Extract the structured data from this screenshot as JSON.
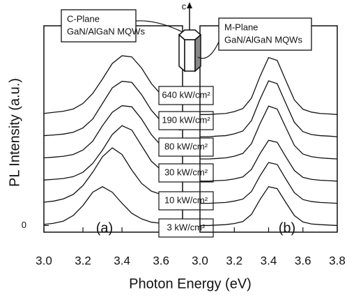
{
  "chart_data": [
    {
      "type": "line",
      "color": "#111111",
      "ylabel": "PL Intensity (a.u.)",
      "xlabel": "Photon Energy (eV)",
      "panel_label": "(a)",
      "plane_label": [
        "C-Plane",
        "GaN/AlGaN MQWs"
      ],
      "crystal_axis_label": "c",
      "xlim": [
        3.0,
        3.71
      ],
      "ylim": [
        -0.3,
        9
      ],
      "xticks": [
        {
          "value": 3.0,
          "label": "3.0"
        },
        {
          "value": 3.2,
          "label": "3.2"
        },
        {
          "value": 3.4,
          "label": "3.4"
        },
        {
          "value": 3.6,
          "label": "3.6"
        }
      ],
      "yticks": [
        0
      ],
      "x": [
        3.0,
        3.05,
        3.1,
        3.15,
        3.2,
        3.25,
        3.3,
        3.35,
        3.4,
        3.45,
        3.5,
        3.55,
        3.6,
        3.65,
        3.7
      ],
      "series": [
        {
          "name": "3 kW/cm²",
          "values": [
            0.05,
            0.1,
            0.2,
            0.45,
            0.9,
            1.5,
            1.75,
            1.5,
            1.0,
            0.55,
            0.3,
            0.15,
            0.1,
            0.05,
            0.05
          ]
        },
        {
          "name": "10 kW/cm²",
          "values": [
            1.05,
            1.1,
            1.2,
            1.4,
            1.8,
            2.4,
            3.1,
            3.5,
            3.2,
            2.5,
            1.9,
            1.55,
            1.4,
            1.3,
            1.2
          ]
        },
        {
          "name": "30 kW/cm²",
          "values": [
            2.05,
            2.08,
            2.12,
            2.2,
            2.4,
            2.8,
            3.4,
            4.1,
            4.5,
            4.3,
            3.6,
            2.9,
            2.5,
            2.3,
            2.2
          ]
        },
        {
          "name": "80 kW/cm²",
          "values": [
            3.05,
            3.08,
            3.12,
            3.2,
            3.4,
            3.8,
            4.5,
            5.1,
            5.4,
            5.35,
            4.8,
            4.1,
            3.6,
            3.35,
            3.25
          ]
        },
        {
          "name": "190 kW/cm²",
          "values": [
            4.05,
            4.08,
            4.12,
            4.2,
            4.4,
            4.8,
            5.5,
            6.2,
            6.5,
            6.45,
            5.9,
            5.2,
            4.7,
            4.4,
            4.3
          ]
        },
        {
          "name": "640 kW/cm²",
          "values": [
            5.05,
            5.1,
            5.15,
            5.25,
            5.5,
            5.95,
            6.6,
            7.3,
            7.65,
            7.6,
            7.1,
            6.4,
            5.9,
            5.6,
            5.45
          ]
        }
      ]
    },
    {
      "type": "line",
      "color": "#111111",
      "panel_label": "(b)",
      "plane_label": [
        "M-Plane",
        "GaN/AlGaN MQWs"
      ],
      "xlim": [
        3.0,
        3.8
      ],
      "ylim": [
        -0.3,
        9
      ],
      "xticks": [
        {
          "value": 3.0,
          "label": "3.0"
        },
        {
          "value": 3.2,
          "label": "3.2"
        },
        {
          "value": 3.4,
          "label": "3.4"
        },
        {
          "value": 3.6,
          "label": "3.6"
        },
        {
          "value": 3.8,
          "label": "3.8"
        }
      ],
      "x": [
        3.0,
        3.05,
        3.1,
        3.15,
        3.2,
        3.25,
        3.3,
        3.35,
        3.4,
        3.45,
        3.5,
        3.55,
        3.6,
        3.65,
        3.7,
        3.75,
        3.8
      ],
      "series": [
        {
          "values": [
            0,
            0,
            0.02,
            0.04,
            0.09,
            0.18,
            0.5,
            1.17,
            1.75,
            1.66,
            1.04,
            0.45,
            0.16,
            0.07,
            0.04,
            0.02,
            0
          ]
        },
        {
          "values": [
            1,
            1,
            1.02,
            1.04,
            1.1,
            1.19,
            1.53,
            2.24,
            2.84,
            2.75,
            2.1,
            1.48,
            1.17,
            1.08,
            1.04,
            1.02,
            1
          ]
        },
        {
          "values": [
            2,
            2,
            2.02,
            2.04,
            2.1,
            2.19,
            2.53,
            3.24,
            3.84,
            3.75,
            3.1,
            2.48,
            2.17,
            2.08,
            2.04,
            2.02,
            2
          ]
        },
        {
          "values": [
            3,
            3,
            3.02,
            3.05,
            3.12,
            3.25,
            3.69,
            4.59,
            5.38,
            5.25,
            4.42,
            3.61,
            3.22,
            3.1,
            3.05,
            3.02,
            3
          ]
        },
        {
          "values": [
            4,
            4,
            4.03,
            4.05,
            4.13,
            4.26,
            4.73,
            5.69,
            6.52,
            6.39,
            5.51,
            4.65,
            4.23,
            4.1,
            4.05,
            4.03,
            4
          ]
        },
        {
          "values": [
            5,
            5,
            5.03,
            5.05,
            5.13,
            5.27,
            5.74,
            6.72,
            7.57,
            7.44,
            6.54,
            5.66,
            5.24,
            5.11,
            5.05,
            5.03,
            5
          ]
        }
      ]
    }
  ]
}
